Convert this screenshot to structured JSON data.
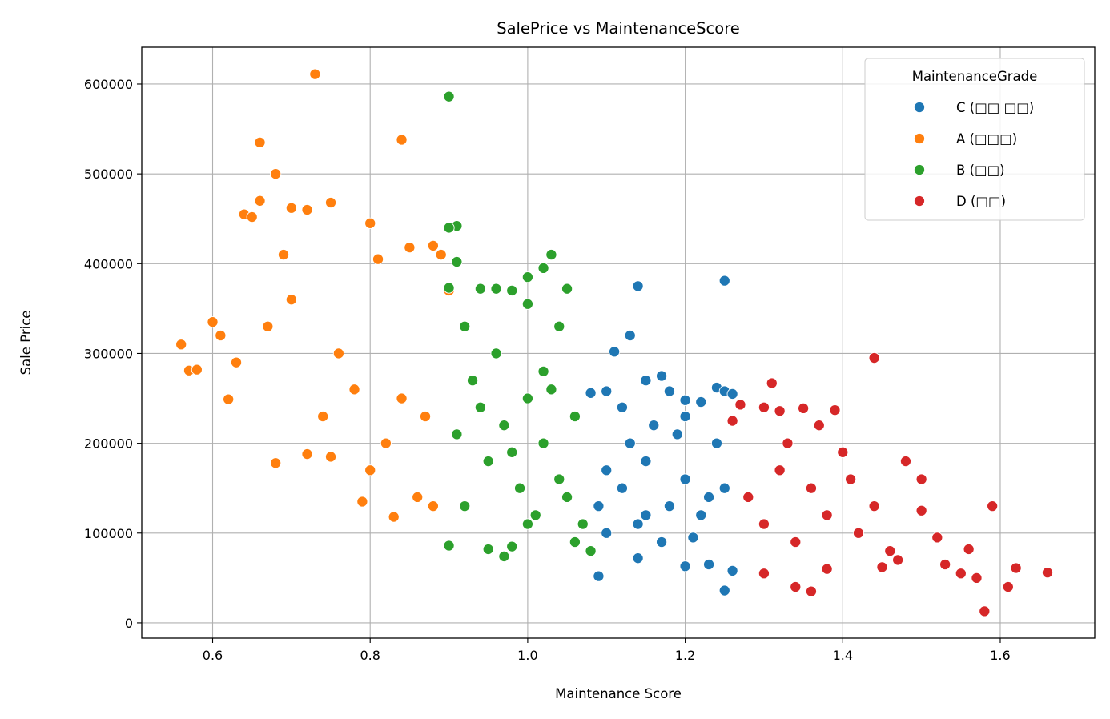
{
  "chart_data": {
    "type": "scatter",
    "title": "SalePrice vs MaintenanceScore",
    "xlabel": "Maintenance Score",
    "ylabel": "Sale Price",
    "xlim": [
      0.51,
      1.72
    ],
    "ylim": [
      -17000,
      641000
    ],
    "xticks": [
      0.6,
      0.8,
      1.0,
      1.2,
      1.4,
      1.6
    ],
    "xtick_labels": [
      "0.6",
      "0.8",
      "1.0",
      "1.2",
      "1.4",
      "1.6"
    ],
    "yticks": [
      0,
      100000,
      200000,
      300000,
      400000,
      500000,
      600000
    ],
    "ytick_labels": [
      "0",
      "100000",
      "200000",
      "300000",
      "400000",
      "500000",
      "600000"
    ],
    "grid": true,
    "legend_title": "MaintenanceGrade",
    "legend_position": "top-right",
    "series": [
      {
        "name": "C (□□ □□)",
        "color": "#1f77b4",
        "points": [
          [
            1.08,
            256000
          ],
          [
            1.1,
            258000
          ],
          [
            1.11,
            302000
          ],
          [
            1.13,
            320000
          ],
          [
            1.14,
            375000
          ],
          [
            1.15,
            270000
          ],
          [
            1.17,
            275000
          ],
          [
            1.18,
            258000
          ],
          [
            1.2,
            248000
          ],
          [
            1.22,
            246000
          ],
          [
            1.24,
            262000
          ],
          [
            1.25,
            381000
          ],
          [
            1.25,
            258000
          ],
          [
            1.26,
            255000
          ],
          [
            1.09,
            52000
          ],
          [
            1.25,
            36000
          ],
          [
            1.26,
            58000
          ],
          [
            1.14,
            72000
          ],
          [
            1.2,
            63000
          ],
          [
            1.23,
            65000
          ],
          [
            1.1,
            100000
          ],
          [
            1.12,
            150000
          ],
          [
            1.15,
            180000
          ],
          [
            1.18,
            130000
          ],
          [
            1.2,
            160000
          ],
          [
            1.22,
            120000
          ],
          [
            1.24,
            200000
          ],
          [
            1.16,
            220000
          ],
          [
            1.12,
            240000
          ],
          [
            1.19,
            210000
          ],
          [
            1.21,
            95000
          ],
          [
            1.14,
            110000
          ],
          [
            1.1,
            170000
          ],
          [
            1.23,
            140000
          ],
          [
            1.17,
            90000
          ],
          [
            1.25,
            150000
          ],
          [
            1.09,
            130000
          ],
          [
            1.2,
            230000
          ],
          [
            1.15,
            120000
          ],
          [
            1.13,
            200000
          ]
        ]
      },
      {
        "name": "A (□□□)",
        "color": "#ff7f0e",
        "points": [
          [
            0.56,
            310000
          ],
          [
            0.57,
            281000
          ],
          [
            0.58,
            282000
          ],
          [
            0.6,
            335000
          ],
          [
            0.61,
            320000
          ],
          [
            0.62,
            249000
          ],
          [
            0.63,
            290000
          ],
          [
            0.64,
            455000
          ],
          [
            0.65,
            452000
          ],
          [
            0.66,
            470000
          ],
          [
            0.66,
            535000
          ],
          [
            0.68,
            500000
          ],
          [
            0.69,
            410000
          ],
          [
            0.7,
            462000
          ],
          [
            0.72,
            460000
          ],
          [
            0.73,
            611000
          ],
          [
            0.75,
            468000
          ],
          [
            0.68,
            178000
          ],
          [
            0.72,
            188000
          ],
          [
            0.75,
            185000
          ],
          [
            0.79,
            135000
          ],
          [
            0.83,
            118000
          ],
          [
            0.8,
            445000
          ],
          [
            0.81,
            405000
          ],
          [
            0.84,
            538000
          ],
          [
            0.85,
            418000
          ],
          [
            0.88,
            420000
          ],
          [
            0.89,
            410000
          ],
          [
            0.9,
            370000
          ],
          [
            0.88,
            130000
          ],
          [
            0.86,
            140000
          ],
          [
            0.82,
            200000
          ],
          [
            0.78,
            260000
          ],
          [
            0.76,
            300000
          ],
          [
            0.7,
            360000
          ],
          [
            0.67,
            330000
          ],
          [
            0.74,
            230000
          ],
          [
            0.8,
            170000
          ],
          [
            0.84,
            250000
          ],
          [
            0.87,
            230000
          ]
        ]
      },
      {
        "name": "B (□□)",
        "color": "#2ca02c",
        "points": [
          [
            0.9,
            586000
          ],
          [
            0.91,
            442000
          ],
          [
            0.9,
            440000
          ],
          [
            0.91,
            402000
          ],
          [
            0.9,
            373000
          ],
          [
            0.92,
            330000
          ],
          [
            0.94,
            372000
          ],
          [
            0.96,
            372000
          ],
          [
            0.98,
            370000
          ],
          [
            1.0,
            355000
          ],
          [
            1.0,
            385000
          ],
          [
            1.02,
            395000
          ],
          [
            1.03,
            410000
          ],
          [
            1.05,
            372000
          ],
          [
            1.04,
            330000
          ],
          [
            0.9,
            86000
          ],
          [
            0.95,
            82000
          ],
          [
            0.97,
            74000
          ],
          [
            0.98,
            85000
          ],
          [
            1.06,
            90000
          ],
          [
            1.08,
            80000
          ],
          [
            1.07,
            110000
          ],
          [
            0.92,
            130000
          ],
          [
            0.95,
            180000
          ],
          [
            0.97,
            220000
          ],
          [
            1.0,
            250000
          ],
          [
            1.02,
            200000
          ],
          [
            1.04,
            160000
          ],
          [
            0.93,
            270000
          ],
          [
            0.96,
            300000
          ],
          [
            0.99,
            150000
          ],
          [
            1.01,
            120000
          ],
          [
            1.03,
            260000
          ],
          [
            1.05,
            140000
          ],
          [
            1.06,
            230000
          ],
          [
            0.94,
            240000
          ],
          [
            0.98,
            190000
          ],
          [
            1.0,
            110000
          ],
          [
            0.91,
            210000
          ],
          [
            1.02,
            280000
          ]
        ]
      },
      {
        "name": "D (□□)",
        "color": "#d62728",
        "points": [
          [
            1.26,
            225000
          ],
          [
            1.27,
            243000
          ],
          [
            1.3,
            240000
          ],
          [
            1.31,
            267000
          ],
          [
            1.32,
            236000
          ],
          [
            1.35,
            239000
          ],
          [
            1.37,
            220000
          ],
          [
            1.39,
            237000
          ],
          [
            1.44,
            295000
          ],
          [
            1.48,
            180000
          ],
          [
            1.5,
            160000
          ],
          [
            1.5,
            125000
          ],
          [
            1.52,
            95000
          ],
          [
            1.53,
            65000
          ],
          [
            1.55,
            55000
          ],
          [
            1.56,
            82000
          ],
          [
            1.57,
            50000
          ],
          [
            1.58,
            13000
          ],
          [
            1.59,
            130000
          ],
          [
            1.61,
            40000
          ],
          [
            1.62,
            61000
          ],
          [
            1.66,
            56000
          ],
          [
            1.3,
            55000
          ],
          [
            1.34,
            40000
          ],
          [
            1.36,
            35000
          ],
          [
            1.38,
            60000
          ],
          [
            1.45,
            62000
          ],
          [
            1.47,
            70000
          ],
          [
            1.28,
            140000
          ],
          [
            1.3,
            110000
          ],
          [
            1.32,
            170000
          ],
          [
            1.34,
            90000
          ],
          [
            1.36,
            150000
          ],
          [
            1.38,
            120000
          ],
          [
            1.4,
            190000
          ],
          [
            1.42,
            100000
          ],
          [
            1.44,
            130000
          ],
          [
            1.46,
            80000
          ],
          [
            1.33,
            200000
          ],
          [
            1.41,
            160000
          ]
        ]
      }
    ]
  }
}
